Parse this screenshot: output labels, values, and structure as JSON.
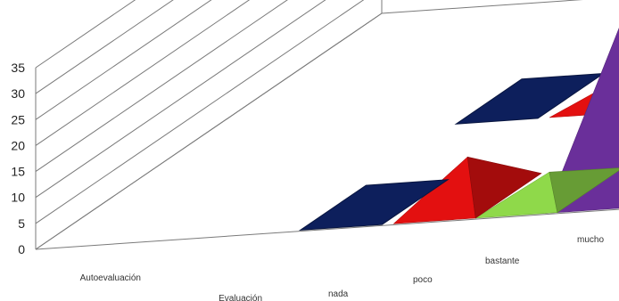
{
  "chart_data": {
    "type": "bar",
    "style": "3d-pyramid",
    "categories": [
      "nada",
      "poco",
      "bastante",
      "mucho"
    ],
    "series_axis": [
      "Evaluación",
      "Autoevaluación"
    ],
    "ylim": [
      0,
      35
    ],
    "yticks": [
      "0",
      "5",
      "10",
      "15",
      "20",
      "25",
      "30",
      "35"
    ],
    "grid": true,
    "xlabel": "",
    "ylabel": "",
    "series": [
      {
        "name": "Evaluación",
        "values": [
          0,
          8,
          4,
          31
        ]
      },
      {
        "name": "Autoevaluación",
        "values": [
          0,
          3,
          24,
          12
        ]
      }
    ],
    "colors": {
      "nada": "#0d1f5c",
      "poco": "#e31010",
      "bastante": "#8fd94a",
      "mucho": "#6a2f9a"
    }
  }
}
